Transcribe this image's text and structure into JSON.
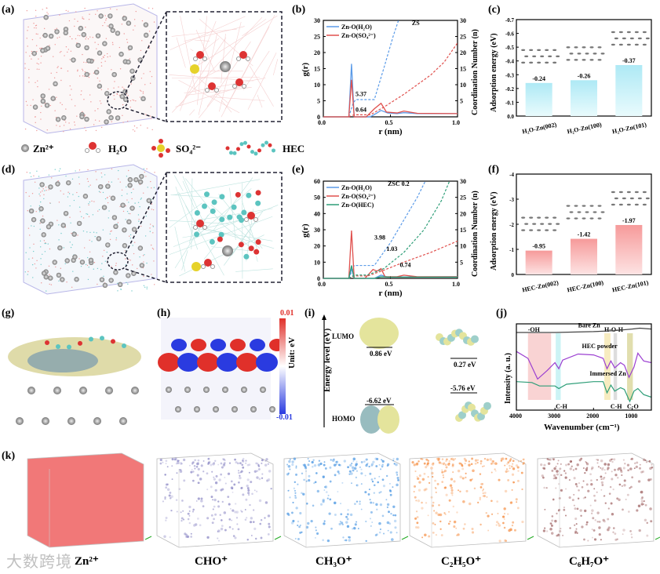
{
  "panels": {
    "a": "(a)",
    "b": "(b)",
    "c": "(c)",
    "d": "(d)",
    "e": "(e)",
    "f": "(f)",
    "g": "(g)",
    "h": "(h)",
    "i": "(i)",
    "j": "(j)",
    "k": "(k)"
  },
  "legend": {
    "zn": "Zn²⁺",
    "h2o": "H₂O",
    "so4": "SO₄²⁻",
    "hec": "HEC"
  },
  "panel_h": {
    "max": "0.01",
    "min": "-0.01",
    "unit": "Unit: eV"
  },
  "panel_i": {
    "ylabel": "Energy level (eV)",
    "lumo": "LUMO",
    "homo": "HOMO",
    "h2o_lumo": "0.86 eV",
    "h2o_homo": "-6.62 eV",
    "hec_lumo": "0.27 eV",
    "hec_homo": "-5.76 eV"
  },
  "panel_k": {
    "labels": [
      "Zn²⁺",
      "CHO⁺",
      "CH₃O⁺",
      "C₂H₅O⁺",
      "C₆H₇O⁺"
    ],
    "colors": [
      "#f06a6a",
      "#8a86c4",
      "#3d8fe0",
      "#f58a3c",
      "#9a5a5a"
    ]
  },
  "watermark": "大数跨境",
  "colors": {
    "h2o": "#5b9be8",
    "so4": "#e0504d",
    "hec": "#2e9e78",
    "bar_c": "#bfeef7",
    "bar_f": "#f8a8a8"
  },
  "chart_data": [
    {
      "id": "b",
      "type": "line",
      "title": "",
      "xlabel": "r (nm)",
      "ylabel": "g(r)",
      "y2label": "Coordination Number (n)",
      "xlim": [
        0,
        1
      ],
      "ylim": [
        0,
        30
      ],
      "y2lim": [
        0,
        30
      ],
      "xticks": [
        0,
        0.5,
        1.0
      ],
      "yticks": [
        0,
        5,
        10,
        15,
        20,
        25,
        30
      ],
      "y2ticks": [
        5,
        10,
        15,
        20,
        25,
        30
      ],
      "series": [
        {
          "name": "Zn-O(H₂O)",
          "color": "#5b9be8",
          "gr": [
            [
              0,
              0
            ],
            [
              0.19,
              0
            ],
            [
              0.21,
              16.5
            ],
            [
              0.23,
              0
            ],
            [
              0.35,
              0
            ],
            [
              0.4,
              1.2
            ],
            [
              0.43,
              2
            ],
            [
              0.48,
              1.2
            ],
            [
              0.55,
              1
            ],
            [
              0.6,
              1.3
            ],
            [
              0.7,
              1
            ],
            [
              1,
              1
            ]
          ],
          "cn": [
            [
              0.19,
              0
            ],
            [
              0.22,
              4
            ],
            [
              0.24,
              5.37
            ],
            [
              0.38,
              5.37
            ],
            [
              0.45,
              15
            ],
            [
              0.52,
              25
            ],
            [
              0.56,
              30
            ]
          ]
        },
        {
          "name": "Zn-O(SO₄²⁻)",
          "color": "#e0504d",
          "gr": [
            [
              0,
              0
            ],
            [
              0.19,
              0
            ],
            [
              0.21,
              11.5
            ],
            [
              0.23,
              0
            ],
            [
              0.32,
              0
            ],
            [
              0.38,
              2.5
            ],
            [
              0.43,
              4.2
            ],
            [
              0.47,
              1.5
            ],
            [
              0.55,
              1.2
            ],
            [
              0.6,
              1.8
            ],
            [
              0.7,
              1.1
            ],
            [
              1,
              1
            ]
          ],
          "cn": [
            [
              0.19,
              0
            ],
            [
              0.23,
              0.64
            ],
            [
              0.35,
              0.64
            ],
            [
              0.45,
              3
            ],
            [
              0.6,
              7
            ],
            [
              0.8,
              13
            ],
            [
              0.9,
              17
            ],
            [
              1,
              23
            ]
          ]
        }
      ],
      "annotations": [
        {
          "text": "ZS",
          "x": 0.66,
          "y": 28.5
        },
        {
          "text": "5.37",
          "x": 0.24,
          "y": 6.5
        },
        {
          "text": "0.64",
          "x": 0.24,
          "y": 1.6
        }
      ],
      "legend": "top-left"
    },
    {
      "id": "c",
      "type": "bar",
      "xlabel": "",
      "ylabel": "Adsorption energy (eV)",
      "categories": [
        "H₂O-Zn(002)",
        "H₂O-Zn(100)",
        "H₂O-Zn(101)"
      ],
      "values": [
        -0.24,
        -0.26,
        -0.37
      ],
      "labels": [
        "-0.24",
        "-0.26",
        "-0.37"
      ],
      "ylim": [
        0,
        -0.7
      ],
      "yticks": [
        "0.0",
        "-0.1",
        "-0.2",
        "-0.3",
        "-0.4",
        "-0.5",
        "-0.6",
        "-0.7"
      ]
    },
    {
      "id": "e",
      "type": "line",
      "xlabel": "r (nm)",
      "ylabel": "g(r)",
      "y2label": "Coordination Number (n)",
      "xlim": [
        0,
        1
      ],
      "ylim": [
        0,
        60
      ],
      "y2lim": [
        0,
        30
      ],
      "xticks": [
        0,
        0.5,
        1.0
      ],
      "yticks": [
        0,
        10,
        20,
        30,
        40,
        50,
        60
      ],
      "y2ticks": [
        5,
        10,
        15,
        20,
        25,
        30
      ],
      "series": [
        {
          "name": "Zn-O(H₂O)",
          "color": "#5b9be8",
          "gr": [
            [
              0,
              0
            ],
            [
              0.19,
              0
            ],
            [
              0.21,
              6
            ],
            [
              0.23,
              0
            ],
            [
              0.38,
              0
            ],
            [
              0.43,
              2
            ],
            [
              0.48,
              0.8
            ],
            [
              1,
              1
            ]
          ],
          "cn": [
            [
              0.19,
              0
            ],
            [
              0.23,
              3.98
            ],
            [
              0.38,
              3.98
            ],
            [
              0.5,
              11
            ],
            [
              0.6,
              18
            ],
            [
              0.7,
              25
            ],
            [
              0.76,
              30
            ]
          ]
        },
        {
          "name": "Zn-O(SO₄²⁻)",
          "color": "#e0504d",
          "gr": [
            [
              0,
              0
            ],
            [
              0.19,
              0
            ],
            [
              0.21,
              29.5
            ],
            [
              0.23,
              0
            ],
            [
              0.31,
              0
            ],
            [
              0.37,
              5.5
            ],
            [
              0.4,
              4.5
            ],
            [
              0.43,
              6
            ],
            [
              0.46,
              1
            ],
            [
              0.55,
              1
            ],
            [
              0.6,
              2
            ],
            [
              0.7,
              1
            ],
            [
              1,
              1
            ]
          ],
          "cn": [
            [
              0.19,
              0
            ],
            [
              0.23,
              0.74
            ],
            [
              0.33,
              0.74
            ],
            [
              0.45,
              2.5
            ],
            [
              0.6,
              5
            ],
            [
              0.8,
              8
            ],
            [
              1,
              11.5
            ]
          ]
        },
        {
          "name": "Zn-O(HEC)",
          "color": "#2e9e78",
          "gr": [
            [
              0,
              0
            ],
            [
              0.19,
              0
            ],
            [
              0.21,
              8
            ],
            [
              0.23,
              0
            ],
            [
              0.38,
              0
            ],
            [
              0.43,
              1
            ],
            [
              0.5,
              0.8
            ],
            [
              1,
              0.8
            ]
          ],
          "cn": [
            [
              0.19,
              0
            ],
            [
              0.23,
              1.03
            ],
            [
              0.33,
              1.03
            ],
            [
              0.45,
              3
            ],
            [
              0.6,
              8
            ],
            [
              0.75,
              15
            ],
            [
              0.88,
              24
            ],
            [
              0.94,
              30
            ]
          ]
        }
      ],
      "annotations": [
        {
          "text": "ZSC 0.2",
          "x": 0.48,
          "y": 28.5
        },
        {
          "text": "3.98",
          "x": 0.38,
          "y": 12
        },
        {
          "text": "1.03",
          "x": 0.47,
          "y": 8.5
        },
        {
          "text": "0.74",
          "x": 0.57,
          "y": 3.5
        }
      ],
      "legend": "top-left"
    },
    {
      "id": "f",
      "type": "bar",
      "ylabel": "Adsorption energy (eV)",
      "categories": [
        "HEC-Zn(002)",
        "HEC-Zn(100)",
        "HEC-Zn(101)"
      ],
      "values": [
        -0.95,
        -1.42,
        -1.97
      ],
      "labels": [
        "-0.95",
        "-1.42",
        "-1.97"
      ],
      "ylim": [
        0,
        -4
      ],
      "yticks": [
        "0",
        "-1",
        "-2",
        "-3",
        "-4"
      ]
    },
    {
      "id": "j",
      "type": "line",
      "xlabel": "Wavenumber (cm⁻¹)",
      "ylabel": "Intensity (a. u.)",
      "xlim": [
        4000,
        500
      ],
      "xticks": [
        4000,
        3000,
        2000,
        1000
      ],
      "series": [
        {
          "name": "Bare Zn",
          "color": "#444444",
          "points": [
            [
              4000,
              0.9
            ],
            [
              3000,
              0.9
            ],
            [
              2000,
              0.91
            ],
            [
              1500,
              0.92
            ],
            [
              1000,
              0.94
            ],
            [
              800,
              0.95
            ],
            [
              500,
              0.94
            ]
          ]
        },
        {
          "name": "HEC powder",
          "color": "#9b3fd1",
          "points": [
            [
              4000,
              0.68
            ],
            [
              3700,
              0.6
            ],
            [
              3450,
              0.36
            ],
            [
              3200,
              0.46
            ],
            [
              3000,
              0.55
            ],
            [
              2900,
              0.48
            ],
            [
              2800,
              0.58
            ],
            [
              2400,
              0.65
            ],
            [
              2000,
              0.64
            ],
            [
              1750,
              0.6
            ],
            [
              1650,
              0.48
            ],
            [
              1550,
              0.57
            ],
            [
              1450,
              0.49
            ],
            [
              1300,
              0.55
            ],
            [
              1200,
              0.52
            ],
            [
              1080,
              0.38
            ],
            [
              950,
              0.5
            ],
            [
              850,
              0.66
            ],
            [
              700,
              0.57
            ],
            [
              500,
              0.55
            ]
          ]
        },
        {
          "name": "Immersed Zn",
          "color": "#2e9e78",
          "points": [
            [
              4000,
              0.33
            ],
            [
              3600,
              0.32
            ],
            [
              3400,
              0.28
            ],
            [
              3000,
              0.28
            ],
            [
              2900,
              0.25
            ],
            [
              2700,
              0.3
            ],
            [
              2000,
              0.33
            ],
            [
              1750,
              0.33
            ],
            [
              1650,
              0.2
            ],
            [
              1550,
              0.29
            ],
            [
              1450,
              0.22
            ],
            [
              1300,
              0.26
            ],
            [
              1200,
              0.24
            ],
            [
              1060,
              0.1
            ],
            [
              950,
              0.22
            ],
            [
              850,
              0.25
            ],
            [
              700,
              0.18
            ],
            [
              500,
              0.15
            ]
          ]
        }
      ],
      "bands": [
        {
          "label": "-OH",
          "range": [
            3700,
            3100
          ],
          "color": "#f7c8c8"
        },
        {
          "label": "C-H",
          "range": [
            2980,
            2850
          ],
          "color": "#bff0f2"
        },
        {
          "label": "H-O-H",
          "range": [
            1720,
            1560
          ],
          "color": "#f5e7b0"
        },
        {
          "label": "C-H",
          "range": [
            1480,
            1390
          ],
          "color": "#d4d4d4"
        },
        {
          "label": "C-O",
          "range": [
            1130,
            980
          ],
          "color": "#d9d69a"
        }
      ]
    }
  ]
}
